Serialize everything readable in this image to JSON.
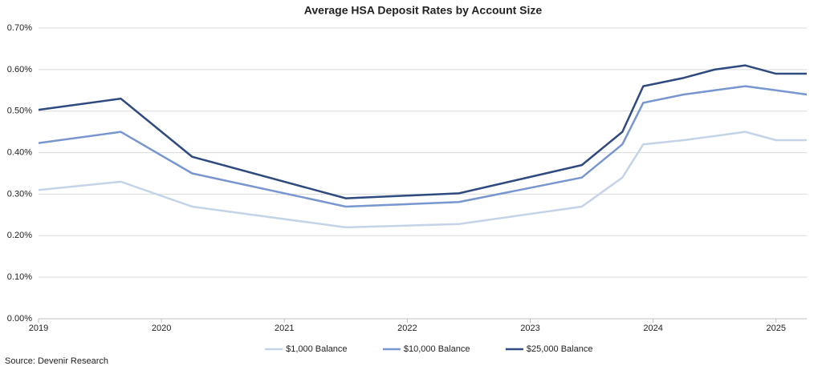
{
  "chart_data": {
    "type": "line",
    "title": "Average HSA Deposit Rates by Account Size",
    "source": "Source: Devenir Research",
    "x": [
      2019.0,
      2019.67,
      2020.25,
      2021.5,
      2022.42,
      2023.42,
      2023.75,
      2023.92,
      2024.25,
      2024.5,
      2024.75,
      2025.0,
      2025.25
    ],
    "series": [
      {
        "name": "$1,000 Balance",
        "color": "#c5d3e8",
        "values": [
          0.31,
          0.33,
          0.27,
          0.22,
          0.228,
          0.27,
          0.34,
          0.42,
          0.43,
          0.44,
          0.45,
          0.43,
          0.43
        ]
      },
      {
        "name": "$10,000 Balance",
        "color": "#7896cf",
        "values": [
          0.423,
          0.45,
          0.35,
          0.27,
          0.281,
          0.34,
          0.42,
          0.52,
          0.54,
          0.55,
          0.56,
          0.55,
          0.54
        ]
      },
      {
        "name": "$25,000 Balance",
        "color": "#2e4a7e",
        "values": [
          0.503,
          0.53,
          0.39,
          0.29,
          0.302,
          0.37,
          0.45,
          0.56,
          0.58,
          0.6,
          0.61,
          0.59,
          0.59
        ]
      }
    ],
    "xlim": [
      2019,
      2025.25
    ],
    "xticks": [
      2019,
      2020,
      2021,
      2022,
      2023,
      2024,
      2025
    ],
    "ylim": [
      0,
      0.7
    ],
    "yticks": [
      {
        "value": 0,
        "label": "0.00%"
      },
      {
        "value": 0.1,
        "label": "0.10%"
      },
      {
        "value": 0.2,
        "label": "0.20%"
      },
      {
        "value": 0.3,
        "label": "0.30%"
      },
      {
        "value": 0.4,
        "label": "0.40%"
      },
      {
        "value": 0.5,
        "label": "0.50%"
      },
      {
        "value": 0.6,
        "label": "0.60%"
      },
      {
        "value": 0.7,
        "label": "0.70%"
      }
    ],
    "grid": true,
    "legend": "bottom"
  }
}
